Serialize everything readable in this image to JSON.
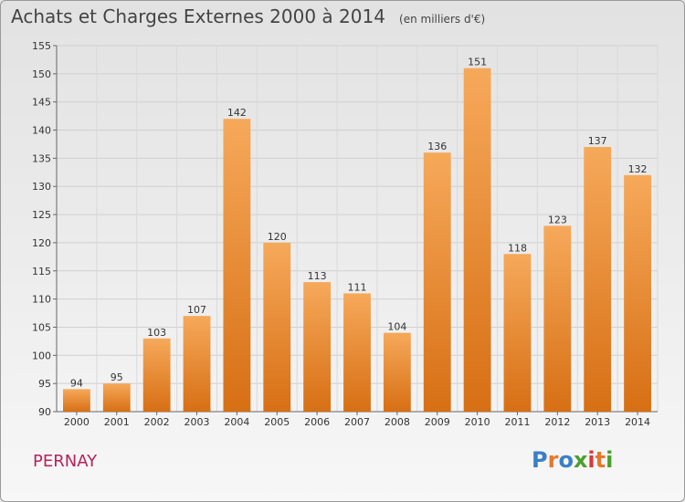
{
  "title": "Achats et Charges Externes 2000 à 2014",
  "subtitle": "(en milliers d'€)",
  "commune": "PERNAY",
  "logo": {
    "text": "Proxiti",
    "colors": [
      "#3a7fc8",
      "#e4792b",
      "#3a7fc8",
      "#4aa02c",
      "#d63b3b",
      "#e4792b",
      "#4aa02c"
    ]
  },
  "colors": {
    "bar_top": "#f6a95a",
    "bar_bottom": "#d76f14",
    "title": "#444444",
    "commune": "#b5235b"
  },
  "chart_data": {
    "type": "bar",
    "title": "Achats et Charges Externes 2000 à 2014",
    "subtitle": "(en milliers d'€)",
    "categories": [
      "2000",
      "2001",
      "2002",
      "2003",
      "2004",
      "2005",
      "2006",
      "2007",
      "2008",
      "2009",
      "2010",
      "2011",
      "2012",
      "2013",
      "2014"
    ],
    "values": [
      94,
      95,
      103,
      107,
      142,
      120,
      113,
      111,
      104,
      136,
      151,
      118,
      123,
      137,
      132
    ],
    "ylim": [
      90,
      155
    ],
    "yticks": [
      90,
      95,
      100,
      105,
      110,
      115,
      120,
      125,
      130,
      135,
      140,
      145,
      150,
      155
    ],
    "grid": true,
    "xlabel": "",
    "ylabel": ""
  }
}
